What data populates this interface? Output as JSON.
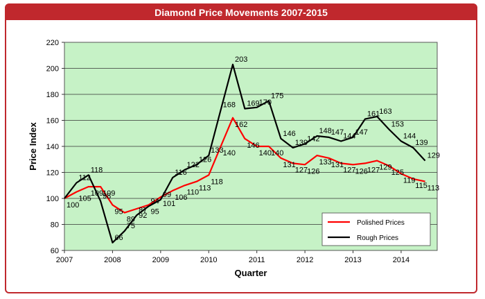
{
  "colors": {
    "frame": "#c0282d",
    "plot_bg": "#c6f2c6",
    "polished": "#ff0000",
    "rough": "#000000"
  },
  "chart_data": {
    "type": "line",
    "title": "Diamond Price Movements 2007-2015",
    "xlabel": "Quarter",
    "ylabel": "Price Index",
    "ylim": [
      60,
      220
    ],
    "yticks": [
      60,
      80,
      100,
      120,
      140,
      160,
      180,
      200,
      220
    ],
    "xlim": [
      2007,
      2014.75
    ],
    "xticks": [
      "2007",
      "2008",
      "2009",
      "2010",
      "2011",
      "2012",
      "2013",
      "2014"
    ],
    "grid": true,
    "legend": "bottom-right",
    "x": [
      2007,
      2007.25,
      2007.5,
      2007.75,
      2008,
      2008.25,
      2008.5,
      2008.75,
      2009,
      2009.25,
      2009.5,
      2009.75,
      2010,
      2010.25,
      2010.5,
      2010.75,
      2011,
      2011.25,
      2011.5,
      2011.75,
      2012,
      2012.25,
      2012.5,
      2012.75,
      2013,
      2013.25,
      2013.5,
      2013.75,
      2014,
      2014.25,
      2014.5
    ],
    "series": [
      {
        "name": "Polished Prices",
        "color": "#ff0000",
        "values": [
          100,
          105,
          109,
          109,
          95,
          89,
          92,
          95,
          101,
          106,
          110,
          113,
          118,
          140,
          162,
          146,
          140,
          140,
          131,
          127,
          126,
          133,
          131,
          127,
          126,
          127,
          129,
          125,
          119,
          115,
          113
        ]
      },
      {
        "name": "Rough Prices",
        "color": "#000000",
        "values": [
          100,
          112,
          118,
          98,
          66,
          75,
          87,
          94,
          99,
          116,
          122,
          126,
          133,
          168,
          203,
          169,
          170,
          175,
          146,
          139,
          142,
          148,
          147,
          144,
          147,
          161,
          163,
          153,
          144,
          139,
          129
        ]
      }
    ],
    "labels": {
      "Polished Prices": [
        "100",
        "105",
        "109",
        "109",
        "95",
        "89",
        "92",
        "95",
        "101",
        "106",
        "110",
        "113",
        "118",
        "140",
        "162",
        "146",
        "140",
        "140",
        "131",
        "127",
        "126",
        "133",
        "131",
        "127",
        "126",
        "127",
        "129",
        "125",
        "119",
        "115",
        "113"
      ],
      "Rough Prices": [
        "",
        "112",
        "118",
        "98",
        "66",
        "75",
        "87",
        "94",
        "99",
        "116",
        "122",
        "126",
        "133",
        "168",
        "203",
        "169",
        "170",
        "175",
        "146",
        "139",
        "142",
        "148",
        "147",
        "144",
        "147",
        "161",
        "163",
        "153",
        "144",
        "139",
        "129"
      ]
    }
  }
}
